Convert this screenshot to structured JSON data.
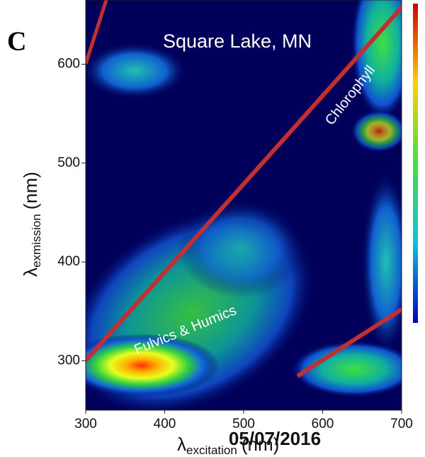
{
  "chart_data": {
    "type": "contour",
    "panel_label": "C",
    "title": "Square Lake, MN",
    "annotations": [
      "Chlorophyll",
      "Fulvics & Humics"
    ],
    "x_label": {
      "symbol": "λ",
      "subscript": "excitation",
      "unit": "(nm)"
    },
    "y_label": {
      "symbol": "λ",
      "subscript": "exmission",
      "unit": "(nm)"
    },
    "date_stamp": "05/07/2016",
    "xlim": [
      300,
      700
    ],
    "xticks": [
      300,
      400,
      500,
      600,
      700
    ],
    "ylim": [
      250,
      665
    ],
    "yticks": [
      300,
      400,
      500,
      600
    ],
    "grid": false
  }
}
